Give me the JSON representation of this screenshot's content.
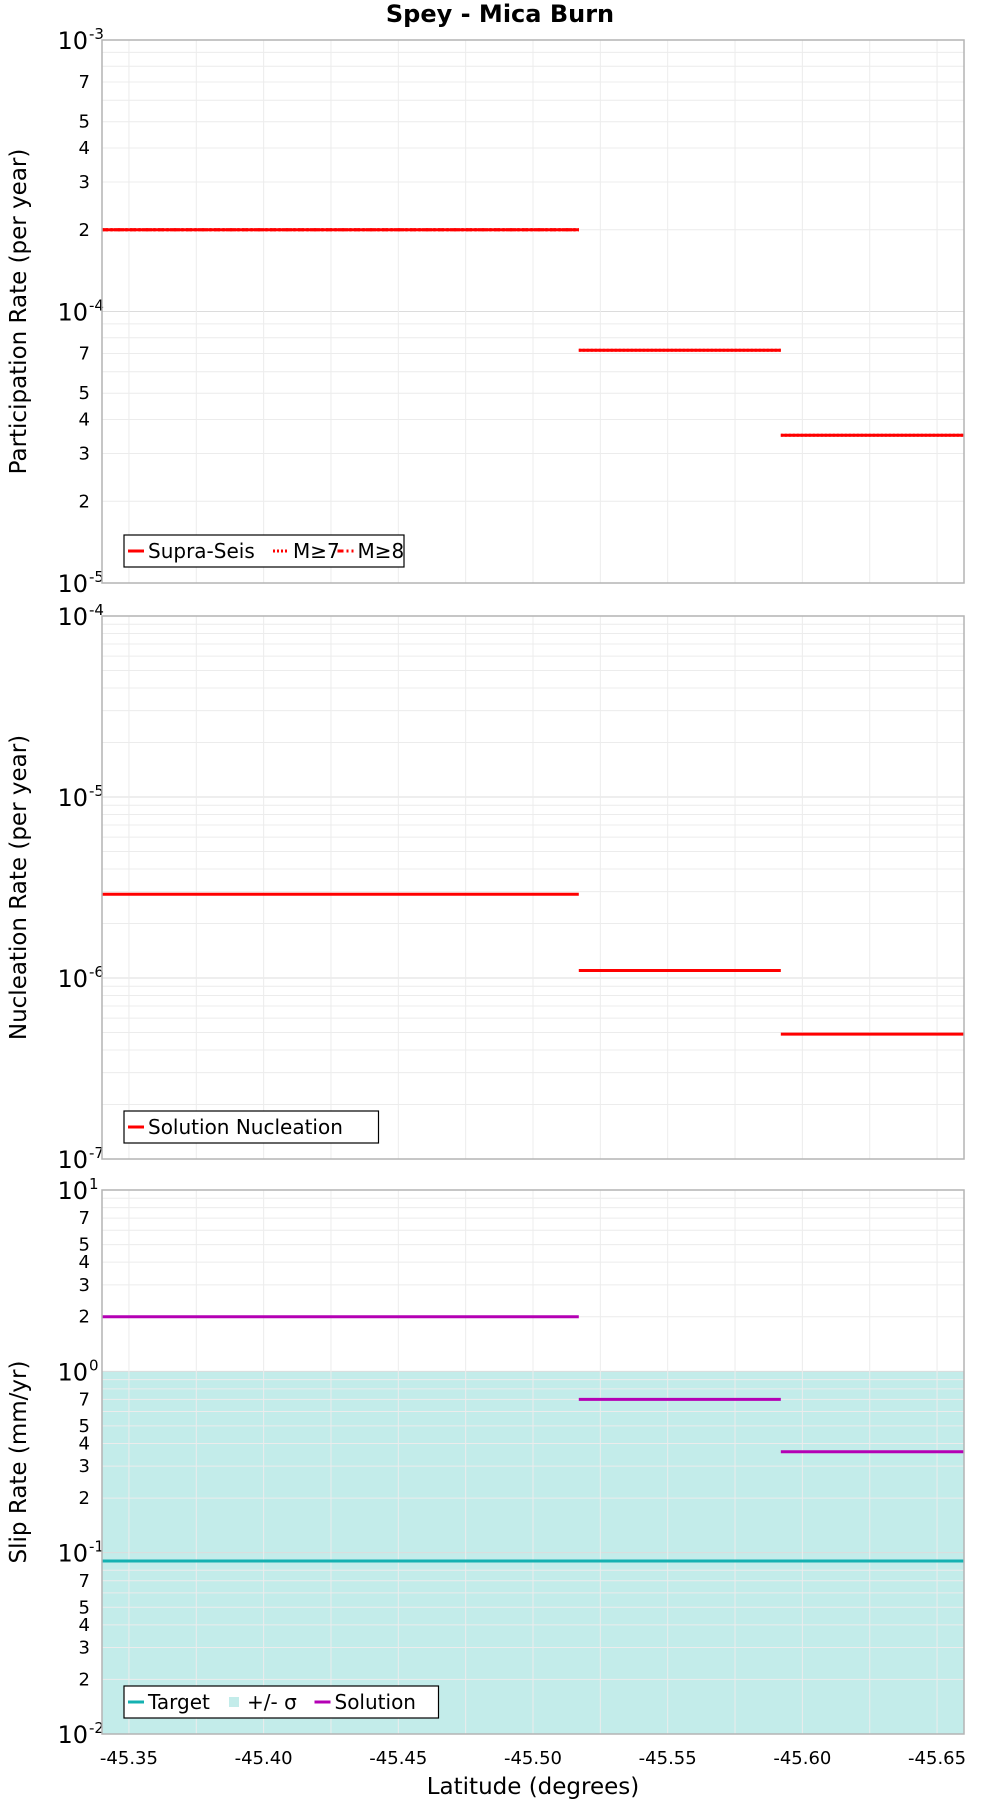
{
  "chart_data": [
    {
      "type": "line",
      "title": "Spey - Mica Burn",
      "ylabel": "Participation Rate (per year)",
      "xlabel": "",
      "yscale": "log",
      "ylim": [
        1e-05,
        0.001
      ],
      "xlim": [
        -45.34,
        -45.66
      ],
      "series": [
        {
          "name": "Supra-Seis",
          "color": "#ff0000",
          "style": "solid",
          "segments": [
            [
              -45.34,
              -45.517,
              0.0002
            ],
            [
              -45.517,
              -45.592,
              7.2e-05
            ],
            [
              -45.592,
              -45.66,
              3.5e-05
            ]
          ]
        },
        {
          "name": "M≥7",
          "color": "#ff0000",
          "style": "dotted",
          "segments": [
            [
              -45.34,
              -45.517,
              0.0002
            ],
            [
              -45.517,
              -45.592,
              7.2e-05
            ],
            [
              -45.592,
              -45.66,
              3.5e-05
            ]
          ]
        },
        {
          "name": "M≥8",
          "color": "#ff0000",
          "style": "dashdot",
          "segments": [
            [
              -45.34,
              -45.517,
              0.0002
            ]
          ]
        }
      ],
      "legend": [
        "Supra-Seis",
        "M≥7",
        "M≥8"
      ],
      "legend_position": "bottom-left"
    },
    {
      "type": "line",
      "ylabel": "Nucleation Rate (per year)",
      "xlabel": "",
      "yscale": "log",
      "ylim": [
        1e-07,
        0.0001
      ],
      "xlim": [
        -45.34,
        -45.66
      ],
      "series": [
        {
          "name": "Solution Nucleation",
          "color": "#ff0000",
          "style": "solid",
          "segments": [
            [
              -45.34,
              -45.517,
              2.9e-06
            ],
            [
              -45.517,
              -45.592,
              1.1e-06
            ],
            [
              -45.592,
              -45.66,
              4.9e-07
            ]
          ]
        }
      ],
      "legend": [
        "Solution Nucleation"
      ],
      "legend_position": "bottom-left"
    },
    {
      "type": "line",
      "ylabel": "Slip Rate (mm/yr)",
      "xlabel": "Latitude (degrees)",
      "yscale": "log",
      "ylim": [
        0.01,
        10
      ],
      "xlim": [
        -45.34,
        -45.66
      ],
      "xticks": [
        "-45.35",
        "-45.40",
        "-45.45",
        "-45.50",
        "-45.55",
        "-45.60",
        "-45.65"
      ],
      "band": {
        "name": "+/- σ",
        "color": "#c3ecea",
        "low": 0.01,
        "high": 1.0
      },
      "series": [
        {
          "name": "Target",
          "color": "#14b1b1",
          "style": "solid",
          "segments": [
            [
              -45.34,
              -45.66,
              0.09
            ]
          ]
        },
        {
          "name": "Solution",
          "color": "#b400b4",
          "style": "solid",
          "segments": [
            [
              -45.34,
              -45.517,
              2.0
            ],
            [
              -45.517,
              -45.592,
              0.7
            ],
            [
              -45.592,
              -45.66,
              0.36
            ]
          ]
        }
      ],
      "legend": [
        "Target",
        "+/- σ",
        "Solution"
      ],
      "legend_position": "bottom-left"
    }
  ]
}
